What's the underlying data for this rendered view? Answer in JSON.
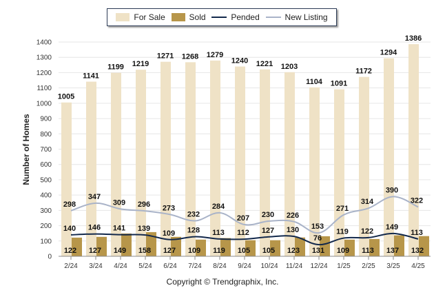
{
  "legend": {
    "for_sale": "For Sale",
    "sold": "Sold",
    "pended": "Pended",
    "new_listing": "New Listing"
  },
  "colors": {
    "for_sale": "#efe2c6",
    "sold": "#b7964a",
    "pended": "#12284b",
    "new_listing": "#a9b3c8"
  },
  "copyright": "Copyright © Trendgraphix, Inc.",
  "chart_data": {
    "type": "bar",
    "ylabel": "Number of Homes",
    "xlabel": "",
    "ylim": [
      0,
      1400
    ],
    "yticks": [
      0,
      100,
      200,
      300,
      400,
      500,
      600,
      700,
      800,
      900,
      1000,
      1100,
      1200,
      1300,
      1400
    ],
    "grid": true,
    "legend_position": "top",
    "categories": [
      "2/24",
      "3/24",
      "4/24",
      "5/24",
      "6/24",
      "7/24",
      "8/24",
      "9/24",
      "10/24",
      "11/24",
      "12/24",
      "1/25",
      "2/25",
      "3/25",
      "4/25"
    ],
    "series": [
      {
        "name": "For Sale",
        "type": "bar",
        "values": [
          1005,
          1141,
          1199,
          1219,
          1271,
          1268,
          1279,
          1240,
          1221,
          1203,
          1104,
          1091,
          1172,
          1294,
          1386
        ]
      },
      {
        "name": "Sold",
        "type": "bar",
        "values": [
          122,
          127,
          149,
          158,
          127,
          109,
          119,
          105,
          105,
          123,
          131,
          109,
          113,
          137,
          132
        ]
      },
      {
        "name": "Pended",
        "type": "line",
        "values": [
          140,
          146,
          141,
          139,
          109,
          128,
          113,
          112,
          127,
          130,
          76,
          119,
          122,
          149,
          113
        ]
      },
      {
        "name": "New Listing",
        "type": "line",
        "values": [
          298,
          347,
          309,
          296,
          273,
          232,
          284,
          207,
          230,
          226,
          153,
          271,
          314,
          390,
          322
        ]
      }
    ]
  }
}
